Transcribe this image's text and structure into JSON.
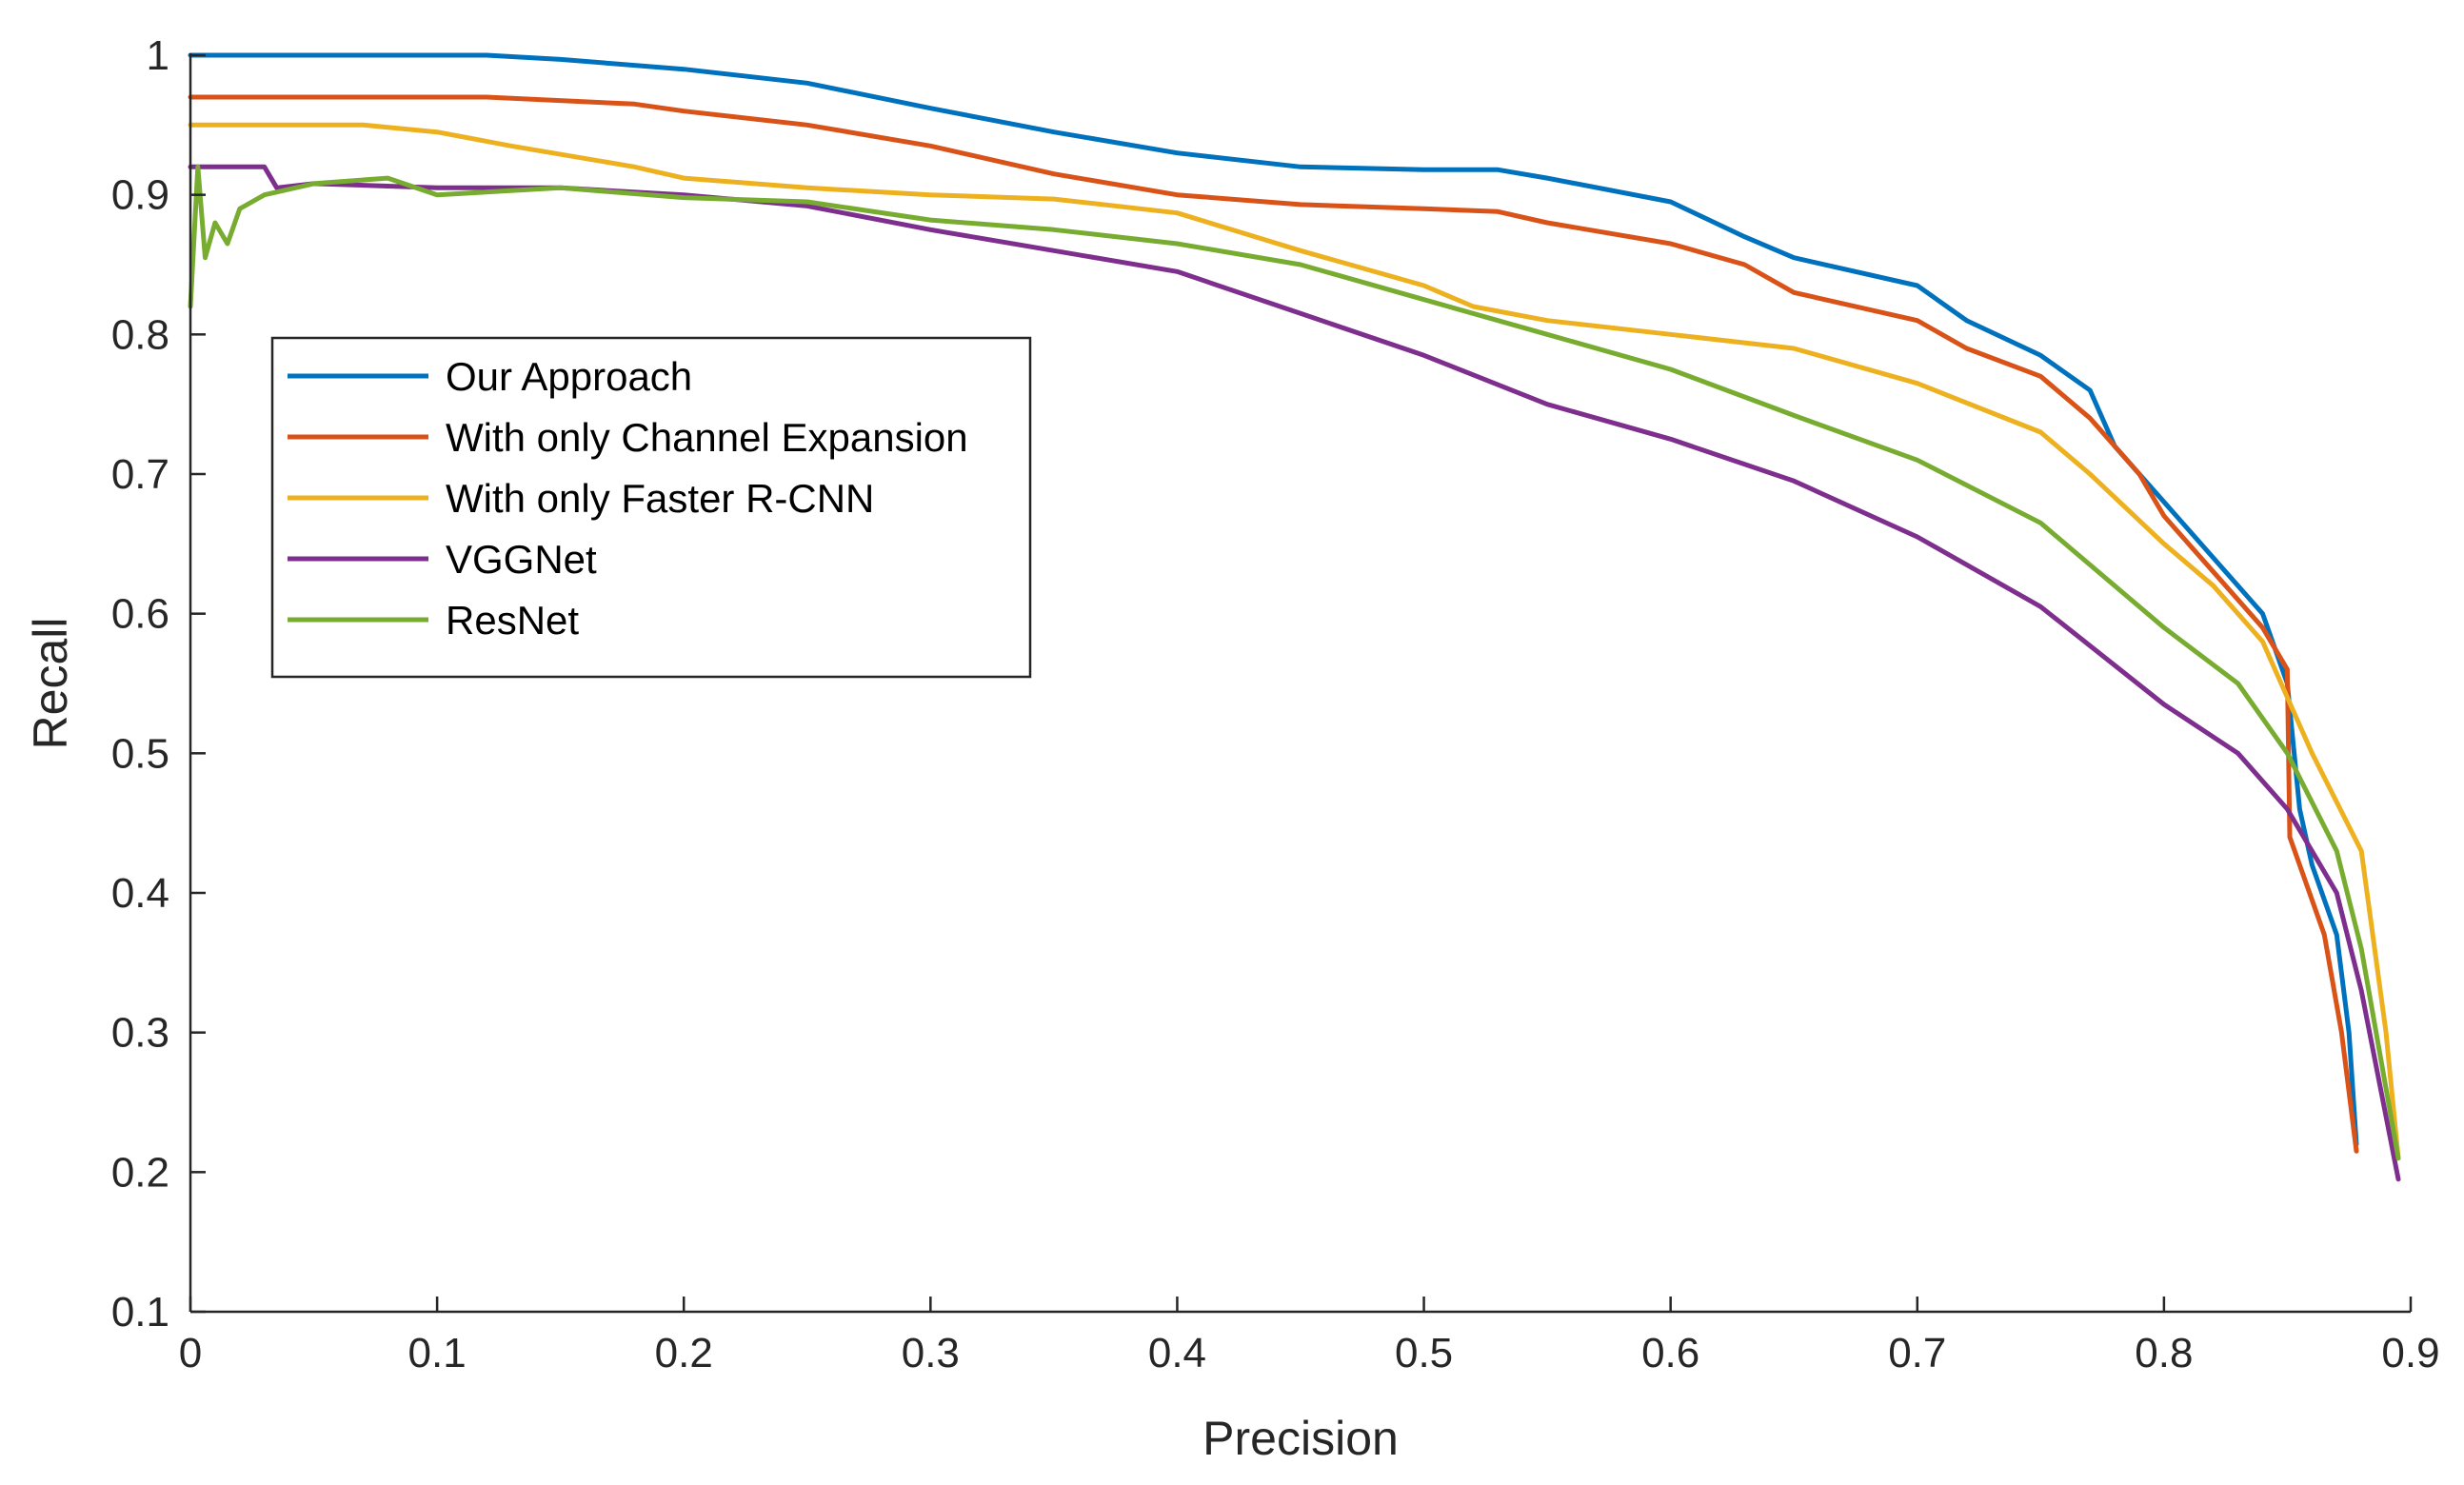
{
  "chart_data": {
    "type": "line",
    "title": "",
    "xlabel": "Precision",
    "ylabel": "Recall",
    "xlim": [
      0,
      0.9
    ],
    "ylim": [
      0.1,
      1
    ],
    "grid": false,
    "legend_position": "upper-left",
    "x_ticks": [
      0,
      0.1,
      0.2,
      0.3,
      0.4,
      0.5,
      0.6,
      0.7,
      0.8,
      0.9
    ],
    "x_tick_labels": [
      "0",
      "0.1",
      "0.2",
      "0.3",
      "0.4",
      "0.5",
      "0.6",
      "0.7",
      "0.8",
      "0.9"
    ],
    "y_ticks": [
      0.1,
      0.2,
      0.3,
      0.4,
      0.5,
      0.6,
      0.7,
      0.8,
      0.9,
      1
    ],
    "y_tick_labels": [
      "0.1",
      "0.2",
      "0.3",
      "0.4",
      "0.5",
      "0.6",
      "0.7",
      "0.8",
      "0.9",
      "1"
    ],
    "series": [
      {
        "name": "Our Approach",
        "color": "#0072BD",
        "points": [
          [
            0,
            1.0
          ],
          [
            0.12,
            1.0
          ],
          [
            0.15,
            0.997
          ],
          [
            0.2,
            0.99
          ],
          [
            0.25,
            0.98
          ],
          [
            0.3,
            0.962
          ],
          [
            0.35,
            0.945
          ],
          [
            0.4,
            0.93
          ],
          [
            0.45,
            0.92
          ],
          [
            0.5,
            0.918
          ],
          [
            0.53,
            0.918
          ],
          [
            0.55,
            0.912
          ],
          [
            0.6,
            0.895
          ],
          [
            0.63,
            0.87
          ],
          [
            0.65,
            0.855
          ],
          [
            0.7,
            0.835
          ],
          [
            0.72,
            0.81
          ],
          [
            0.75,
            0.785
          ],
          [
            0.77,
            0.76
          ],
          [
            0.78,
            0.72
          ],
          [
            0.8,
            0.68
          ],
          [
            0.82,
            0.64
          ],
          [
            0.84,
            0.6
          ],
          [
            0.85,
            0.55
          ],
          [
            0.855,
            0.46
          ],
          [
            0.86,
            0.42
          ],
          [
            0.87,
            0.37
          ],
          [
            0.875,
            0.3
          ],
          [
            0.878,
            0.22
          ]
        ]
      },
      {
        "name": "With only Channel Expansion",
        "color": "#D95319",
        "points": [
          [
            0,
            0.97
          ],
          [
            0.12,
            0.97
          ],
          [
            0.18,
            0.965
          ],
          [
            0.2,
            0.96
          ],
          [
            0.25,
            0.95
          ],
          [
            0.3,
            0.935
          ],
          [
            0.35,
            0.915
          ],
          [
            0.4,
            0.9
          ],
          [
            0.45,
            0.893
          ],
          [
            0.5,
            0.89
          ],
          [
            0.53,
            0.888
          ],
          [
            0.55,
            0.88
          ],
          [
            0.6,
            0.865
          ],
          [
            0.63,
            0.85
          ],
          [
            0.65,
            0.83
          ],
          [
            0.7,
            0.81
          ],
          [
            0.72,
            0.79
          ],
          [
            0.75,
            0.77
          ],
          [
            0.77,
            0.74
          ],
          [
            0.79,
            0.7
          ],
          [
            0.8,
            0.67
          ],
          [
            0.82,
            0.63
          ],
          [
            0.84,
            0.59
          ],
          [
            0.85,
            0.56
          ],
          [
            0.851,
            0.44
          ],
          [
            0.855,
            0.42
          ],
          [
            0.865,
            0.37
          ],
          [
            0.872,
            0.3
          ],
          [
            0.878,
            0.215
          ]
        ]
      },
      {
        "name": "With only Faster R-CNN",
        "color": "#EDB120",
        "points": [
          [
            0,
            0.95
          ],
          [
            0.07,
            0.95
          ],
          [
            0.1,
            0.945
          ],
          [
            0.13,
            0.935
          ],
          [
            0.18,
            0.92
          ],
          [
            0.2,
            0.912
          ],
          [
            0.25,
            0.905
          ],
          [
            0.3,
            0.9
          ],
          [
            0.35,
            0.897
          ],
          [
            0.4,
            0.887
          ],
          [
            0.45,
            0.86
          ],
          [
            0.5,
            0.835
          ],
          [
            0.52,
            0.82
          ],
          [
            0.55,
            0.81
          ],
          [
            0.6,
            0.8
          ],
          [
            0.65,
            0.79
          ],
          [
            0.7,
            0.765
          ],
          [
            0.75,
            0.73
          ],
          [
            0.77,
            0.7
          ],
          [
            0.8,
            0.65
          ],
          [
            0.82,
            0.62
          ],
          [
            0.84,
            0.58
          ],
          [
            0.86,
            0.5
          ],
          [
            0.88,
            0.43
          ],
          [
            0.89,
            0.3
          ],
          [
            0.895,
            0.21
          ]
        ]
      },
      {
        "name": "VGGNet",
        "color": "#7E2F8E",
        "points": [
          [
            0,
            0.92
          ],
          [
            0.03,
            0.92
          ],
          [
            0.035,
            0.905
          ],
          [
            0.05,
            0.908
          ],
          [
            0.1,
            0.905
          ],
          [
            0.15,
            0.905
          ],
          [
            0.2,
            0.9
          ],
          [
            0.25,
            0.892
          ],
          [
            0.3,
            0.875
          ],
          [
            0.35,
            0.86
          ],
          [
            0.4,
            0.845
          ],
          [
            0.45,
            0.815
          ],
          [
            0.5,
            0.785
          ],
          [
            0.55,
            0.75
          ],
          [
            0.6,
            0.725
          ],
          [
            0.65,
            0.695
          ],
          [
            0.7,
            0.655
          ],
          [
            0.75,
            0.605
          ],
          [
            0.8,
            0.535
          ],
          [
            0.83,
            0.5
          ],
          [
            0.85,
            0.46
          ],
          [
            0.87,
            0.4
          ],
          [
            0.88,
            0.33
          ],
          [
            0.895,
            0.195
          ]
        ]
      },
      {
        "name": "ResNet",
        "color": "#77AC30",
        "points": [
          [
            0,
            0.82
          ],
          [
            0.003,
            0.92
          ],
          [
            0.006,
            0.855
          ],
          [
            0.01,
            0.88
          ],
          [
            0.015,
            0.865
          ],
          [
            0.02,
            0.89
          ],
          [
            0.03,
            0.9
          ],
          [
            0.05,
            0.908
          ],
          [
            0.08,
            0.912
          ],
          [
            0.1,
            0.9
          ],
          [
            0.15,
            0.905
          ],
          [
            0.2,
            0.898
          ],
          [
            0.25,
            0.895
          ],
          [
            0.3,
            0.882
          ],
          [
            0.35,
            0.875
          ],
          [
            0.4,
            0.865
          ],
          [
            0.45,
            0.85
          ],
          [
            0.5,
            0.825
          ],
          [
            0.55,
            0.8
          ],
          [
            0.6,
            0.775
          ],
          [
            0.65,
            0.742
          ],
          [
            0.7,
            0.71
          ],
          [
            0.75,
            0.665
          ],
          [
            0.8,
            0.59
          ],
          [
            0.83,
            0.55
          ],
          [
            0.85,
            0.5
          ],
          [
            0.87,
            0.43
          ],
          [
            0.88,
            0.36
          ],
          [
            0.895,
            0.21
          ]
        ]
      }
    ]
  }
}
